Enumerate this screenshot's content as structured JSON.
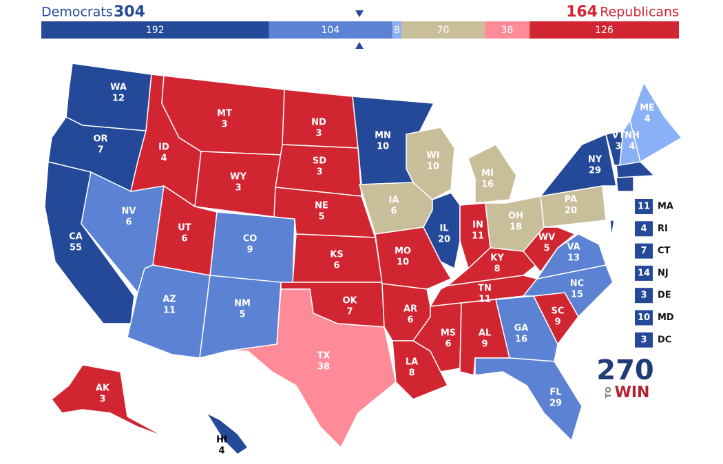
{
  "header": {
    "left_label": "Democrats",
    "left_total": 304,
    "right_total": 164,
    "right_label": "Republicans"
  },
  "bar": {
    "total": 538,
    "segments": [
      {
        "value": 192,
        "color": "#244999"
      },
      {
        "value": 104,
        "color": "#5b82d3"
      },
      {
        "value": 8,
        "color": "#8ab0f5"
      },
      {
        "value": 70,
        "color": "#c9be9a"
      },
      {
        "value": 38,
        "color": "#ff8a98"
      },
      {
        "value": 126,
        "color": "#d22532"
      }
    ]
  },
  "states": [
    {
      "abbr": "WA",
      "votes": 12,
      "color": "#244999"
    },
    {
      "abbr": "OR",
      "votes": 7,
      "color": "#244999"
    },
    {
      "abbr": "CA",
      "votes": 55,
      "color": "#244999"
    },
    {
      "abbr": "NV",
      "votes": 6,
      "color": "#5b82d3"
    },
    {
      "abbr": "ID",
      "votes": 4,
      "color": "#d22532"
    },
    {
      "abbr": "MT",
      "votes": 3,
      "color": "#d22532"
    },
    {
      "abbr": "WY",
      "votes": 3,
      "color": "#d22532"
    },
    {
      "abbr": "UT",
      "votes": 6,
      "color": "#d22532"
    },
    {
      "abbr": "CO",
      "votes": 9,
      "color": "#5b82d3"
    },
    {
      "abbr": "AZ",
      "votes": 11,
      "color": "#5b82d3"
    },
    {
      "abbr": "NM",
      "votes": 5,
      "color": "#5b82d3"
    },
    {
      "abbr": "ND",
      "votes": 3,
      "color": "#d22532"
    },
    {
      "abbr": "SD",
      "votes": 3,
      "color": "#d22532"
    },
    {
      "abbr": "NE",
      "votes": 5,
      "color": "#d22532"
    },
    {
      "abbr": "KS",
      "votes": 6,
      "color": "#d22532"
    },
    {
      "abbr": "OK",
      "votes": 7,
      "color": "#d22532"
    },
    {
      "abbr": "TX",
      "votes": 38,
      "color": "#ff8a98"
    },
    {
      "abbr": "MN",
      "votes": 10,
      "color": "#244999"
    },
    {
      "abbr": "IA",
      "votes": 6,
      "color": "#c9be9a"
    },
    {
      "abbr": "MO",
      "votes": 10,
      "color": "#d22532"
    },
    {
      "abbr": "AR",
      "votes": 6,
      "color": "#d22532"
    },
    {
      "abbr": "LA",
      "votes": 8,
      "color": "#d22532"
    },
    {
      "abbr": "WI",
      "votes": 10,
      "color": "#c9be9a"
    },
    {
      "abbr": "IL",
      "votes": 20,
      "color": "#244999"
    },
    {
      "abbr": "MI",
      "votes": 16,
      "color": "#c9be9a"
    },
    {
      "abbr": "IN",
      "votes": 11,
      "color": "#d22532"
    },
    {
      "abbr": "OH",
      "votes": 18,
      "color": "#c9be9a"
    },
    {
      "abbr": "KY",
      "votes": 8,
      "color": "#d22532"
    },
    {
      "abbr": "TN",
      "votes": 11,
      "color": "#d22532"
    },
    {
      "abbr": "MS",
      "votes": 6,
      "color": "#d22532"
    },
    {
      "abbr": "AL",
      "votes": 9,
      "color": "#d22532"
    },
    {
      "abbr": "GA",
      "votes": 16,
      "color": "#5b82d3"
    },
    {
      "abbr": "FL",
      "votes": 29,
      "color": "#5b82d3"
    },
    {
      "abbr": "SC",
      "votes": 9,
      "color": "#d22532"
    },
    {
      "abbr": "NC",
      "votes": 15,
      "color": "#5b82d3"
    },
    {
      "abbr": "VA",
      "votes": 13,
      "color": "#5b82d3"
    },
    {
      "abbr": "WV",
      "votes": 5,
      "color": "#d22532"
    },
    {
      "abbr": "PA",
      "votes": 20,
      "color": "#c9be9a"
    },
    {
      "abbr": "NY",
      "votes": 29,
      "color": "#244999"
    },
    {
      "abbr": "VT",
      "votes": 3,
      "color": "#244999"
    },
    {
      "abbr": "NH",
      "votes": 4,
      "color": "#8ab0f5"
    },
    {
      "abbr": "ME",
      "votes": 4,
      "color": "#8ab0f5"
    },
    {
      "abbr": "AK",
      "votes": 3,
      "color": "#d22532"
    },
    {
      "abbr": "HI",
      "votes": 4,
      "color": "#244999"
    }
  ],
  "small_states": [
    {
      "abbr": "MA",
      "votes": 11,
      "color": "#244999"
    },
    {
      "abbr": "RI",
      "votes": 4,
      "color": "#244999"
    },
    {
      "abbr": "CT",
      "votes": 7,
      "color": "#244999"
    },
    {
      "abbr": "NJ",
      "votes": 14,
      "color": "#244999"
    },
    {
      "abbr": "DE",
      "votes": 3,
      "color": "#244999"
    },
    {
      "abbr": "MD",
      "votes": 10,
      "color": "#244999"
    },
    {
      "abbr": "DC",
      "votes": 3,
      "color": "#244999"
    }
  ],
  "logo": {
    "number": "270",
    "to": "TO",
    "win": "WIN"
  }
}
